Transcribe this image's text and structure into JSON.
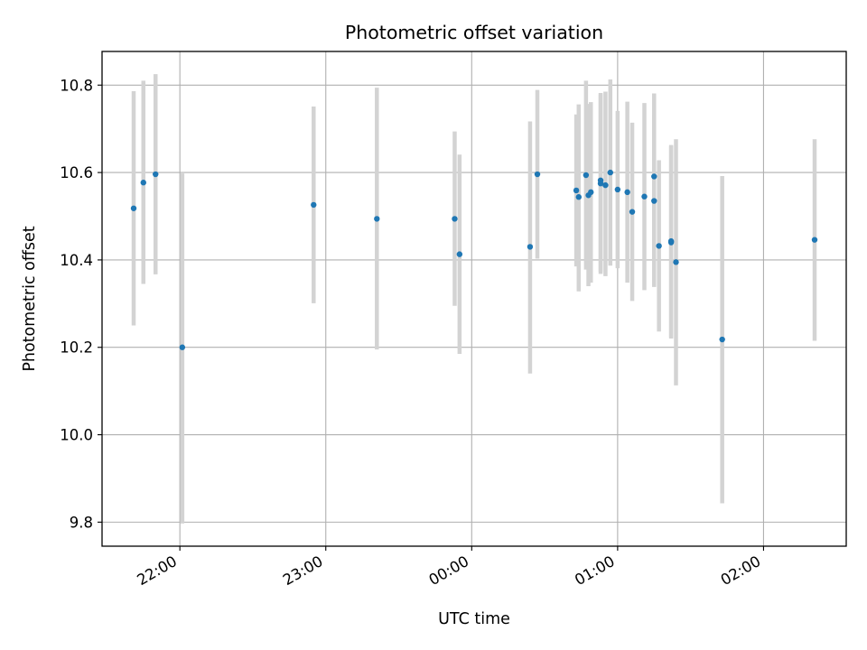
{
  "chart_data": {
    "type": "scatter",
    "title": "Photometric offset variation",
    "xlabel": "UTC time",
    "ylabel": "Photometric offset",
    "grid": true,
    "xlim": [
      "21:28",
      "02:34"
    ],
    "ylim": [
      9.745,
      10.877
    ],
    "x_ticks": [
      "22:00",
      "23:00",
      "00:00",
      "01:00",
      "02:00"
    ],
    "y_ticks": [
      "9.8",
      "10.0",
      "10.2",
      "10.4",
      "10.6",
      "10.8"
    ],
    "points": [
      {
        "x": "21:41",
        "y": 10.518,
        "y_low": 10.25,
        "y_high": 10.786
      },
      {
        "x": "21:45",
        "y": 10.577,
        "y_low": 10.345,
        "y_high": 10.81
      },
      {
        "x": "21:50",
        "y": 10.596,
        "y_low": 10.367,
        "y_high": 10.825
      },
      {
        "x": "22:01",
        "y": 10.2,
        "y_low": 9.797,
        "y_high": 10.598
      },
      {
        "x": "22:55",
        "y": 10.526,
        "y_low": 10.301,
        "y_high": 10.751
      },
      {
        "x": "23:21",
        "y": 10.494,
        "y_low": 10.195,
        "y_high": 10.794
      },
      {
        "x": "23:53",
        "y": 10.494,
        "y_low": 10.295,
        "y_high": 10.694
      },
      {
        "x": "23:55",
        "y": 10.413,
        "y_low": 10.185,
        "y_high": 10.641
      },
      {
        "x": "00:24",
        "y": 10.43,
        "y_low": 10.14,
        "y_high": 10.717
      },
      {
        "x": "00:27",
        "y": 10.596,
        "y_low": 10.403,
        "y_high": 10.789
      },
      {
        "x": "00:43",
        "y": 10.559,
        "y_low": 10.385,
        "y_high": 10.733
      },
      {
        "x": "00:44",
        "y": 10.544,
        "y_low": 10.328,
        "y_high": 10.756
      },
      {
        "x": "00:47",
        "y": 10.594,
        "y_low": 10.378,
        "y_high": 10.81
      },
      {
        "x": "00:48",
        "y": 10.548,
        "y_low": 10.34,
        "y_high": 10.757
      },
      {
        "x": "00:49",
        "y": 10.555,
        "y_low": 10.348,
        "y_high": 10.761
      },
      {
        "x": "00:53",
        "y": 10.582,
        "y_low": 10.373,
        "y_high": 10.779
      },
      {
        "x": "00:53",
        "y": 10.575,
        "y_low": 10.368,
        "y_high": 10.782
      },
      {
        "x": "00:55",
        "y": 10.571,
        "y_low": 10.363,
        "y_high": 10.785
      },
      {
        "x": "00:57",
        "y": 10.6,
        "y_low": 10.387,
        "y_high": 10.813
      },
      {
        "x": "01:00",
        "y": 10.561,
        "y_low": 10.381,
        "y_high": 10.741
      },
      {
        "x": "01:04",
        "y": 10.555,
        "y_low": 10.348,
        "y_high": 10.762
      },
      {
        "x": "01:06",
        "y": 10.51,
        "y_low": 10.306,
        "y_high": 10.714
      },
      {
        "x": "01:11",
        "y": 10.545,
        "y_low": 10.331,
        "y_high": 10.759
      },
      {
        "x": "01:15",
        "y": 10.591,
        "y_low": 10.4,
        "y_high": 10.781
      },
      {
        "x": "01:15",
        "y": 10.535,
        "y_low": 10.338,
        "y_high": 10.732
      },
      {
        "x": "01:17",
        "y": 10.432,
        "y_low": 10.236,
        "y_high": 10.628
      },
      {
        "x": "01:22",
        "y": 10.44,
        "y_low": 10.22,
        "y_high": 10.66
      },
      {
        "x": "01:22",
        "y": 10.443,
        "y_low": 10.223,
        "y_high": 10.663
      },
      {
        "x": "01:24",
        "y": 10.395,
        "y_low": 10.113,
        "y_high": 10.676
      },
      {
        "x": "01:43",
        "y": 10.218,
        "y_low": 9.843,
        "y_high": 10.592
      },
      {
        "x": "02:21",
        "y": 10.446,
        "y_low": 10.215,
        "y_high": 10.676
      }
    ],
    "colors": {
      "marker": "#1f77b4",
      "errorbar": "#d3d3d3",
      "grid": "#b0b0b0",
      "axis": "#000000"
    }
  }
}
